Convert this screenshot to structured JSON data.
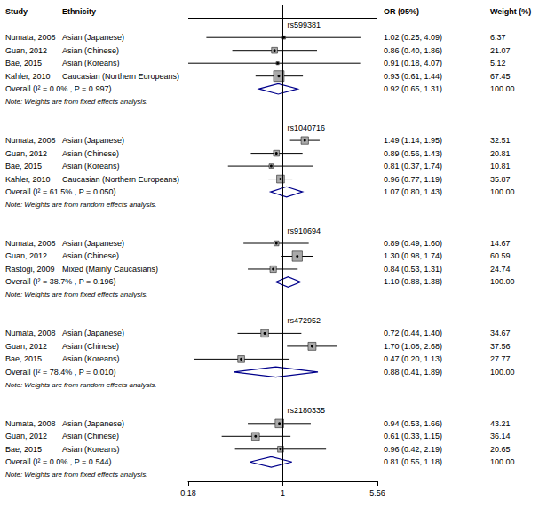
{
  "chart_data": {
    "type": "forest",
    "log": "x",
    "xlim": [
      0.18,
      5.56
    ],
    "xticks": [
      0.18,
      1,
      5.56
    ],
    "null_line": 1,
    "grid": false,
    "tick_labels": "x",
    "columns": [
      "Study",
      "Ethnicity",
      "OR (95%)",
      "Weight (%)"
    ],
    "box_color": "#A9A9A9",
    "diamond_color": "#00008B",
    "line_color": "#000000",
    "text_color": "#000000",
    "bg_color": "#ffffff",
    "groups": [
      {
        "name": "rs599381",
        "studies": [
          {
            "study": "Numata, 2008",
            "ethnicity": "Asian (Japanese)",
            "or": 1.02,
            "ci_low": 0.25,
            "ci_high": 4.09,
            "or_label": "1.02 (0.25, 4.09)",
            "weight": 6.37,
            "weight_label": "6.37"
          },
          {
            "study": "Guan, 2012",
            "ethnicity": "Asian (Chinese)",
            "or": 0.86,
            "ci_low": 0.4,
            "ci_high": 1.86,
            "or_label": "0.86 (0.40, 1.86)",
            "weight": 21.07,
            "weight_label": "21.07"
          },
          {
            "study": "Bae, 2015",
            "ethnicity": "Asian (Koreans)",
            "or": 0.91,
            "ci_low": 0.18,
            "ci_high": 4.07,
            "or_label": "0.91 (0.18, 4.07)",
            "weight": 5.12,
            "weight_label": "5.12"
          },
          {
            "study": "Kahler, 2010",
            "ethnicity": "Caucasian (Northern Europeans)",
            "or": 0.93,
            "ci_low": 0.61,
            "ci_high": 1.44,
            "or_label": "0.93 (0.61, 1.44)",
            "weight": 67.45,
            "weight_label": "67.45"
          }
        ],
        "overall": {
          "label": "Overall (I² = 0.0% , P = 0.997)",
          "or": 0.92,
          "ci_low": 0.65,
          "ci_high": 1.31,
          "or_label": "0.92 (0.65, 1.31)",
          "weight": 100.0,
          "weight_label": "100.00"
        },
        "note": "Note: Weights are from fixed effects analysis."
      },
      {
        "name": "rs1040716",
        "studies": [
          {
            "study": "Numata, 2008",
            "ethnicity": "Asian (Japanese)",
            "or": 1.49,
            "ci_low": 1.14,
            "ci_high": 1.95,
            "or_label": "1.49 (1.14, 1.95)",
            "weight": 32.51,
            "weight_label": "32.51"
          },
          {
            "study": "Guan, 2012",
            "ethnicity": "Asian (Chinese)",
            "or": 0.89,
            "ci_low": 0.56,
            "ci_high": 1.43,
            "or_label": "0.89 (0.56, 1.43)",
            "weight": 20.81,
            "weight_label": "20.81"
          },
          {
            "study": "Bae, 2015",
            "ethnicity": "Asian (Koreans)",
            "or": 0.81,
            "ci_low": 0.37,
            "ci_high": 1.74,
            "or_label": "0.81 (0.37, 1.74)",
            "weight": 10.81,
            "weight_label": "10.81"
          },
          {
            "study": "Kahler, 2010",
            "ethnicity": "Caucasian (Northern Europeans)",
            "or": 0.96,
            "ci_low": 0.77,
            "ci_high": 1.19,
            "or_label": "0.96 (0.77, 1.19)",
            "weight": 35.87,
            "weight_label": "35.87"
          }
        ],
        "overall": {
          "label": "Overall (I² = 61.5% , P = 0.050)",
          "or": 1.07,
          "ci_low": 0.8,
          "ci_high": 1.43,
          "or_label": "1.07 (0.80, 1.43)",
          "weight": 100.0,
          "weight_label": "100.00"
        },
        "note": "Note: Weights are from random effects analysis."
      },
      {
        "name": "rs910694",
        "studies": [
          {
            "study": "Numata, 2008",
            "ethnicity": "Asian (Japanese)",
            "or": 0.89,
            "ci_low": 0.49,
            "ci_high": 1.6,
            "or_label": "0.89 (0.49, 1.60)",
            "weight": 14.67,
            "weight_label": "14.67"
          },
          {
            "study": "Guan, 2012",
            "ethnicity": "Asian (Chinese)",
            "or": 1.3,
            "ci_low": 0.98,
            "ci_high": 1.74,
            "or_label": "1.30 (0.98, 1.74)",
            "weight": 60.59,
            "weight_label": "60.59"
          },
          {
            "study": "Rastogi, 2009",
            "ethnicity": "Mixed (Mainly Caucasians)",
            "or": 0.84,
            "ci_low": 0.53,
            "ci_high": 1.31,
            "or_label": "0.84 (0.53, 1.31)",
            "weight": 24.74,
            "weight_label": "24.74"
          }
        ],
        "overall": {
          "label": "Overall (I² = 38.7% , P = 0.196)",
          "or": 1.1,
          "ci_low": 0.88,
          "ci_high": 1.38,
          "or_label": "1.10 (0.88, 1.38)",
          "weight": 100.0,
          "weight_label": "100.00"
        },
        "note": "Note: Weights are from fixed effects analysis."
      },
      {
        "name": "rs472952",
        "studies": [
          {
            "study": "Numata, 2008",
            "ethnicity": "Asian (Japanese)",
            "or": 0.72,
            "ci_low": 0.44,
            "ci_high": 1.4,
            "or_label": "0.72 (0.44, 1.40)",
            "weight": 34.67,
            "weight_label": "34.67"
          },
          {
            "study": "Guan, 2012",
            "ethnicity": "Asian (Chinese)",
            "or": 1.7,
            "ci_low": 1.08,
            "ci_high": 2.68,
            "or_label": "1.70 (1.08, 2.68)",
            "weight": 37.56,
            "weight_label": "37.56"
          },
          {
            "study": "Bae, 2015",
            "ethnicity": "Asian (Koreans)",
            "or": 0.47,
            "ci_low": 0.2,
            "ci_high": 1.13,
            "or_label": "0.47 (0.20, 1.13)",
            "weight": 27.77,
            "weight_label": "27.77"
          }
        ],
        "overall": {
          "label": "Overall (I² = 78.4% , P = 0.010)",
          "or": 0.88,
          "ci_low": 0.41,
          "ci_high": 1.89,
          "or_label": "0.88 (0.41, 1.89)",
          "weight": 100.0,
          "weight_label": "100.00"
        },
        "note": "Note: Weights are from random effects analysis."
      },
      {
        "name": "rs2180335",
        "studies": [
          {
            "study": "Numata, 2008",
            "ethnicity": "Asian (Japanese)",
            "or": 0.94,
            "ci_low": 0.53,
            "ci_high": 1.66,
            "or_label": "0.94 (0.53, 1.66)",
            "weight": 43.21,
            "weight_label": "43.21"
          },
          {
            "study": "Guan, 2012",
            "ethnicity": "Asian (Chinese)",
            "or": 0.61,
            "ci_low": 0.33,
            "ci_high": 1.15,
            "or_label": "0.61 (0.33, 1.15)",
            "weight": 36.14,
            "weight_label": "36.14"
          },
          {
            "study": "Bae, 2015",
            "ethnicity": "Asian (Koreans)",
            "or": 0.96,
            "ci_low": 0.42,
            "ci_high": 2.19,
            "or_label": "0.96 (0.42, 2.19)",
            "weight": 20.65,
            "weight_label": "20.65"
          }
        ],
        "overall": {
          "label": "Overall (I² = 0.0% , P = 0.544)",
          "or": 0.81,
          "ci_low": 0.55,
          "ci_high": 1.18,
          "or_label": "0.81 (0.55, 1.18)",
          "weight": 100.0,
          "weight_label": "100.00"
        },
        "note": "Note: Weights are from fixed effects analysis."
      }
    ]
  }
}
